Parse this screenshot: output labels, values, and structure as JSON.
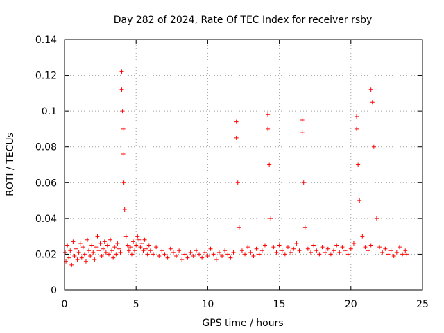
{
  "chart_data": {
    "type": "scatter",
    "title": "Day 282 of 2024, Rate Of TEC Index for receiver rsby",
    "xlabel": "GPS time / hours",
    "ylabel": "ROTI / TECUs",
    "xlim": [
      0,
      25
    ],
    "ylim": [
      0,
      0.14
    ],
    "xticks": [
      0,
      5,
      10,
      15,
      20,
      25
    ],
    "xtick_labels": [
      "0",
      "5",
      "10",
      "15",
      "20",
      "25"
    ],
    "yticks": [
      0,
      0.02,
      0.04,
      0.06,
      0.08,
      0.1,
      0.12,
      0.14
    ],
    "ytick_labels": [
      "0",
      "0.02",
      "0.04",
      "0.06",
      "0.08",
      "0.1",
      "0.12",
      "0.14"
    ],
    "grid": true,
    "marker": "+",
    "color": "#ff0000",
    "series": [
      {
        "name": "ROTI",
        "x": [
          0.05,
          0.1,
          0.2,
          0.3,
          0.4,
          0.5,
          0.6,
          0.7,
          0.8,
          0.9,
          1.0,
          1.1,
          1.2,
          1.3,
          1.4,
          1.5,
          1.6,
          1.7,
          1.8,
          1.9,
          2.0,
          2.1,
          2.2,
          2.3,
          2.4,
          2.5,
          2.6,
          2.7,
          2.8,
          2.9,
          3.0,
          3.1,
          3.2,
          3.3,
          3.4,
          3.5,
          3.6,
          3.7,
          3.8,
          3.9,
          4.0,
          4.0,
          4.05,
          4.1,
          4.1,
          4.15,
          4.2,
          4.3,
          4.4,
          4.5,
          4.6,
          4.7,
          4.8,
          4.9,
          5.0,
          5.1,
          5.2,
          5.3,
          5.4,
          5.5,
          5.6,
          5.7,
          5.8,
          5.9,
          6.0,
          6.2,
          6.4,
          6.6,
          6.8,
          7.0,
          7.2,
          7.4,
          7.6,
          7.8,
          8.0,
          8.2,
          8.4,
          8.6,
          8.8,
          9.0,
          9.2,
          9.4,
          9.6,
          9.8,
          10.0,
          10.2,
          10.4,
          10.6,
          10.8,
          11.0,
          11.2,
          11.4,
          11.6,
          11.8,
          12.0,
          12.0,
          12.1,
          12.2,
          12.4,
          12.6,
          12.8,
          13.0,
          13.2,
          13.4,
          13.6,
          13.8,
          14.0,
          14.2,
          14.2,
          14.3,
          14.4,
          14.6,
          14.8,
          15.0,
          15.2,
          15.4,
          15.6,
          15.8,
          16.0,
          16.2,
          16.4,
          16.6,
          16.6,
          16.7,
          16.8,
          17.0,
          17.2,
          17.4,
          17.6,
          17.8,
          18.0,
          18.2,
          18.4,
          18.6,
          18.8,
          19.0,
          19.2,
          19.4,
          19.6,
          19.8,
          20.0,
          20.2,
          20.4,
          20.4,
          20.5,
          20.6,
          20.8,
          21.0,
          21.2,
          21.4,
          21.4,
          21.5,
          21.6,
          21.8,
          22.0,
          22.2,
          22.4,
          22.6,
          22.8,
          23.0,
          23.2,
          23.4,
          23.6,
          23.8,
          23.9
        ],
        "y": [
          0.021,
          0.016,
          0.025,
          0.018,
          0.022,
          0.014,
          0.027,
          0.019,
          0.023,
          0.017,
          0.021,
          0.026,
          0.018,
          0.024,
          0.02,
          0.016,
          0.028,
          0.022,
          0.019,
          0.025,
          0.021,
          0.017,
          0.024,
          0.03,
          0.022,
          0.026,
          0.019,
          0.023,
          0.027,
          0.021,
          0.025,
          0.02,
          0.028,
          0.022,
          0.018,
          0.024,
          0.02,
          0.026,
          0.023,
          0.021,
          0.122,
          0.112,
          0.1,
          0.09,
          0.076,
          0.06,
          0.045,
          0.03,
          0.025,
          0.022,
          0.024,
          0.02,
          0.027,
          0.022,
          0.025,
          0.03,
          0.028,
          0.024,
          0.026,
          0.022,
          0.028,
          0.023,
          0.02,
          0.025,
          0.022,
          0.02,
          0.024,
          0.019,
          0.022,
          0.02,
          0.018,
          0.023,
          0.021,
          0.019,
          0.022,
          0.017,
          0.02,
          0.018,
          0.021,
          0.019,
          0.022,
          0.02,
          0.018,
          0.021,
          0.019,
          0.023,
          0.02,
          0.017,
          0.021,
          0.019,
          0.022,
          0.02,
          0.018,
          0.021,
          0.094,
          0.085,
          0.06,
          0.035,
          0.022,
          0.02,
          0.024,
          0.021,
          0.019,
          0.023,
          0.02,
          0.022,
          0.025,
          0.098,
          0.09,
          0.07,
          0.04,
          0.024,
          0.021,
          0.025,
          0.022,
          0.02,
          0.024,
          0.021,
          0.023,
          0.026,
          0.022,
          0.095,
          0.088,
          0.06,
          0.035,
          0.023,
          0.021,
          0.025,
          0.022,
          0.02,
          0.024,
          0.021,
          0.023,
          0.02,
          0.022,
          0.025,
          0.021,
          0.024,
          0.022,
          0.02,
          0.023,
          0.026,
          0.09,
          0.097,
          0.07,
          0.05,
          0.03,
          0.024,
          0.022,
          0.025,
          0.112,
          0.105,
          0.08,
          0.04,
          0.024,
          0.021,
          0.023,
          0.02,
          0.022,
          0.019,
          0.021,
          0.024,
          0.02,
          0.022,
          0.02
        ]
      }
    ]
  }
}
